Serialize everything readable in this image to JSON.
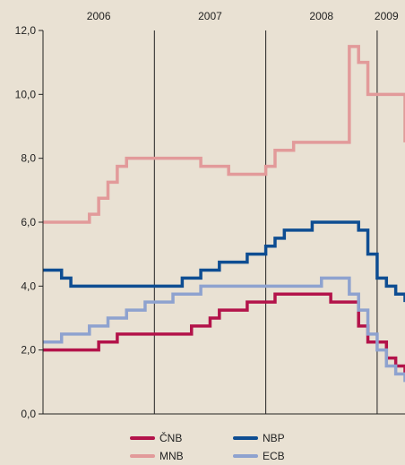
{
  "chart_data": {
    "type": "line",
    "line_shape": "step",
    "title": "",
    "xlabel": "",
    "ylabel": "",
    "xlim": [
      "2006-01",
      "2009-04"
    ],
    "ylim": [
      0,
      12
    ],
    "yticks": [
      "0,0",
      "2,0",
      "4,0",
      "6,0",
      "8,0",
      "10,0",
      "12,0"
    ],
    "year_labels": [
      "2006",
      "2007",
      "2008",
      "2009"
    ],
    "year_positions": [
      "2006-07",
      "2007-07",
      "2008-07",
      "2009-02"
    ],
    "year_dividers": [
      "2007-01",
      "2008-01",
      "2009-01"
    ],
    "grid": false,
    "legend_position": "bottom",
    "series": [
      {
        "name": "ČNB",
        "color": "#b3134a",
        "points": [
          [
            "2006-01",
            2.0
          ],
          [
            "2006-07",
            2.25
          ],
          [
            "2006-09",
            2.5
          ],
          [
            "2007-05",
            2.75
          ],
          [
            "2007-07",
            3.0
          ],
          [
            "2007-08",
            3.25
          ],
          [
            "2007-11",
            3.5
          ],
          [
            "2008-02",
            3.75
          ],
          [
            "2008-08",
            3.5
          ],
          [
            "2008-11",
            2.75
          ],
          [
            "2008-12",
            2.25
          ],
          [
            "2009-02",
            1.75
          ],
          [
            "2009-03",
            1.5
          ],
          [
            "2009-04",
            1.25
          ]
        ]
      },
      {
        "name": "NBP",
        "color": "#0e4d92",
        "points": [
          [
            "2006-01",
            4.5
          ],
          [
            "2006-03",
            4.25
          ],
          [
            "2006-04",
            4.0
          ],
          [
            "2007-04",
            4.25
          ],
          [
            "2007-06",
            4.5
          ],
          [
            "2007-08",
            4.75
          ],
          [
            "2007-11",
            5.0
          ],
          [
            "2008-01",
            5.25
          ],
          [
            "2008-02",
            5.5
          ],
          [
            "2008-03",
            5.75
          ],
          [
            "2008-06",
            6.0
          ],
          [
            "2008-11",
            5.75
          ],
          [
            "2008-12",
            5.0
          ],
          [
            "2009-01",
            4.25
          ],
          [
            "2009-02",
            4.0
          ],
          [
            "2009-03",
            3.75
          ],
          [
            "2009-04",
            3.5
          ]
        ]
      },
      {
        "name": "MNB",
        "color": "#e29a9a",
        "points": [
          [
            "2006-01",
            6.0
          ],
          [
            "2006-06",
            6.25
          ],
          [
            "2006-07",
            6.75
          ],
          [
            "2006-08",
            7.25
          ],
          [
            "2006-09",
            7.75
          ],
          [
            "2006-10",
            8.0
          ],
          [
            "2007-06",
            7.75
          ],
          [
            "2007-09",
            7.5
          ],
          [
            "2008-01",
            7.75
          ],
          [
            "2008-02",
            8.25
          ],
          [
            "2008-04",
            8.5
          ],
          [
            "2008-10",
            11.5
          ],
          [
            "2008-11",
            11.0
          ],
          [
            "2008-12",
            10.0
          ],
          [
            "2009-04",
            8.5
          ]
        ]
      },
      {
        "name": "ECB",
        "color": "#8ea2cf",
        "points": [
          [
            "2006-01",
            2.25
          ],
          [
            "2006-03",
            2.5
          ],
          [
            "2006-06",
            2.75
          ],
          [
            "2006-08",
            3.0
          ],
          [
            "2006-10",
            3.25
          ],
          [
            "2006-12",
            3.5
          ],
          [
            "2007-03",
            3.75
          ],
          [
            "2007-06",
            4.0
          ],
          [
            "2008-07",
            4.25
          ],
          [
            "2008-10",
            3.75
          ],
          [
            "2008-11",
            3.25
          ],
          [
            "2008-12",
            2.5
          ],
          [
            "2009-01",
            2.0
          ],
          [
            "2009-02",
            1.5
          ],
          [
            "2009-03",
            1.25
          ],
          [
            "2009-04",
            1.0
          ]
        ]
      }
    ]
  }
}
